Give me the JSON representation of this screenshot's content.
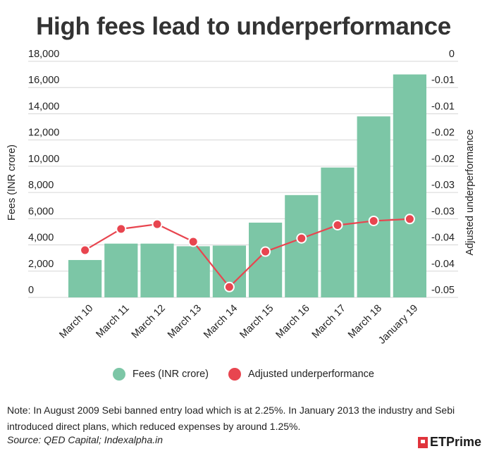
{
  "chart_data": {
    "type": "bar",
    "title": "High fees lead to underperformance",
    "categories": [
      "March 10",
      "March 11",
      "March 12",
      "March 13",
      "March 14",
      "March 15",
      "March 16",
      "March 17",
      "March 18",
      "January 19"
    ],
    "series": [
      {
        "name": "Fees (INR crore)",
        "type": "bar",
        "axis": "left",
        "color": "#7cc6a6",
        "values": [
          2850,
          4100,
          4100,
          3900,
          3950,
          5700,
          7800,
          9900,
          13800,
          17000
        ]
      },
      {
        "name": "Adjusted underperformance",
        "type": "line",
        "axis": "right",
        "color": "#e8454f",
        "values": [
          -0.04,
          -0.0355,
          -0.0345,
          -0.0382,
          -0.0478,
          -0.0403,
          -0.0375,
          -0.0347,
          -0.0338,
          -0.0334
        ]
      }
    ],
    "ylabel": "Fees (INR crore)",
    "y2label": "Adjusted underperformance",
    "ylim": [
      0,
      18000
    ],
    "y2lim": [
      -0.05,
      0
    ],
    "yticks": [
      "18,000",
      "16,000",
      "14,000",
      "12,000",
      "10,000",
      "8,000",
      "6,000",
      "4,000",
      "2,000",
      "0"
    ],
    "y2ticks": [
      "0",
      "-0.01",
      "-0.01",
      "-0.02",
      "-0.02",
      "-0.03",
      "-0.03",
      "-0.04",
      "-0.04",
      "-0.05"
    ],
    "grid": true,
    "legend_position": "bottom"
  },
  "footer": {
    "note": "Note:  In August 2009 Sebi banned entry load which is at 2.25%. In January 2013 the industry and Sebi introduced direct plans, which reduced expenses by around 1.25%.",
    "source": "Source: QED Capital; Indexalpha.in",
    "brand": "ETPrime"
  }
}
